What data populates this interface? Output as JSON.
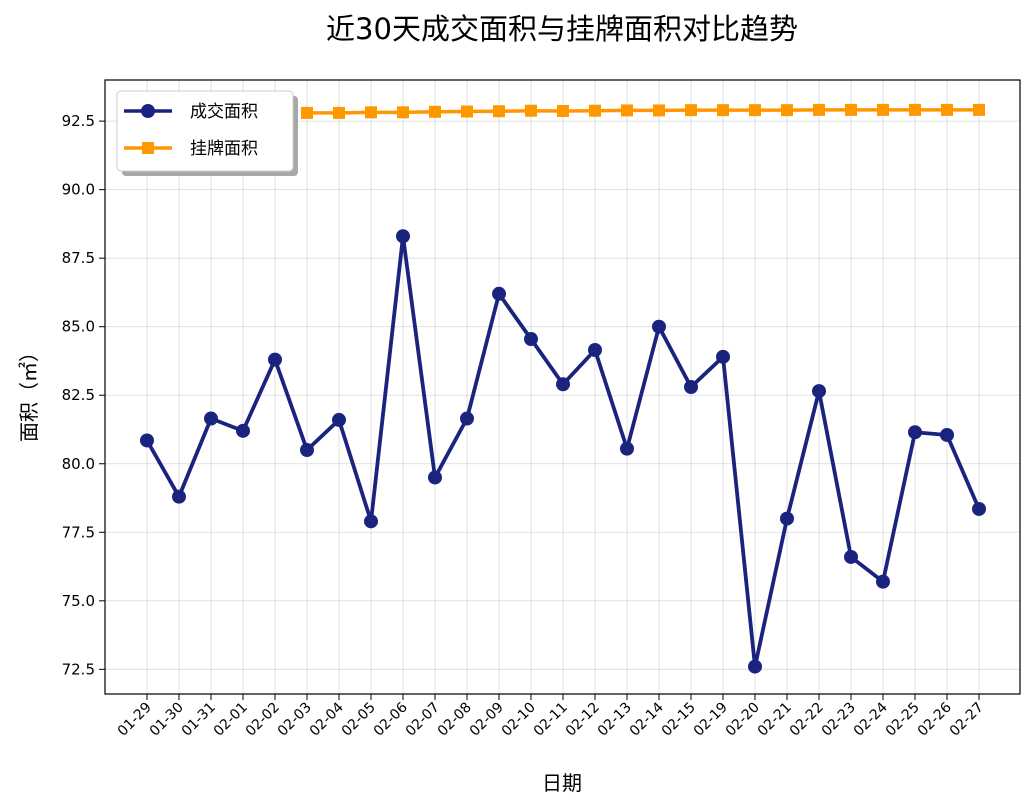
{
  "chart_data": {
    "type": "line",
    "title": "近30天成交面积与挂牌面积对比趋势",
    "xlabel": "日期",
    "ylabel": "面积（㎡）",
    "categories": [
      "01-29",
      "01-30",
      "01-31",
      "02-01",
      "02-02",
      "02-03",
      "02-04",
      "02-05",
      "02-06",
      "02-07",
      "02-08",
      "02-09",
      "02-10",
      "02-11",
      "02-12",
      "02-13",
      "02-14",
      "02-15",
      "02-19",
      "02-20",
      "02-21",
      "02-22",
      "02-23",
      "02-24",
      "02-25",
      "02-26",
      "02-27"
    ],
    "ylim": [
      71.6,
      94.0
    ],
    "yticks": [
      72.5,
      75.0,
      77.5,
      80.0,
      82.5,
      85.0,
      87.5,
      90.0,
      92.5
    ],
    "ytick_labels": [
      "72.5",
      "75.0",
      "77.5",
      "80.0",
      "82.5",
      "85.0",
      "87.5",
      "90.0",
      "92.5"
    ],
    "grid": true,
    "legend_position": "top-left",
    "series": [
      {
        "name": "成交面积",
        "color": "#1a237e",
        "marker": "circle",
        "values": [
          80.85,
          78.8,
          81.65,
          81.2,
          83.8,
          80.5,
          81.6,
          77.9,
          88.3,
          79.5,
          81.65,
          86.2,
          84.55,
          82.9,
          84.15,
          80.55,
          85.0,
          82.8,
          83.9,
          72.6,
          78.0,
          82.65,
          76.6,
          75.7,
          81.15,
          81.05,
          78.35
        ]
      },
      {
        "name": "挂牌面积",
        "color": "#ff9800",
        "marker": "square",
        "values": [
          null,
          null,
          null,
          null,
          null,
          92.8,
          92.8,
          92.82,
          92.82,
          92.84,
          92.85,
          92.86,
          92.88,
          92.87,
          92.88,
          92.89,
          92.89,
          92.9,
          92.9,
          92.9,
          92.9,
          92.91,
          92.91,
          92.91,
          92.91,
          92.91,
          92.91
        ]
      }
    ]
  }
}
